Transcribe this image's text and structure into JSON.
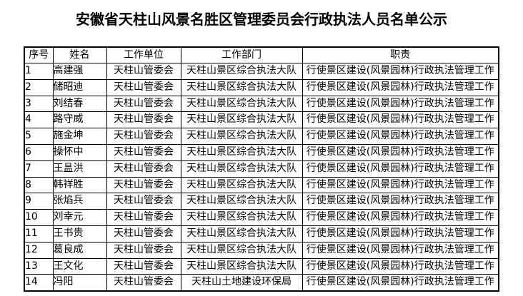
{
  "title": "安徽省天柱山风景名胜区管理委员会行政执法人员名单公示",
  "table": {
    "headers": [
      "序号",
      "姓名",
      "工作单位",
      "工作部门",
      "职责"
    ],
    "rows": [
      [
        "1",
        "高建强",
        "天柱山管委会",
        "天柱山景区综合执法大队",
        "行使景区建设(风景园林)行政执法管理工作"
      ],
      [
        "2",
        "储昭迪",
        "天柱山管委会",
        "天柱山景区综合执法大队",
        "行使景区建设(风景园林)行政执法管理工作"
      ],
      [
        "3",
        "刘结春",
        "天柱山管委会",
        "天柱山景区综合执法大队",
        "行使景区建设(风景园林)行政执法管理工作"
      ],
      [
        "4",
        "路守威",
        "天柱山管委会",
        "天柱山景区综合执法大队",
        "行使景区建设(风景园林)行政执法管理工作"
      ],
      [
        "5",
        "施金坤",
        "天柱山管委会",
        "天柱山景区综合执法大队",
        "行使景区建设(风景园林)行政执法管理工作"
      ],
      [
        "6",
        "操怀中",
        "天柱山管委会",
        "天柱山景区综合执法大队",
        "行使景区建设(风景园林)行政执法管理工作"
      ],
      [
        "7",
        "王昷洪",
        "天柱山管委会",
        "天柱山景区综合执法大队",
        "行使景区建设(风景园林)行政执法管理工作"
      ],
      [
        "8",
        "韩祥胜",
        "天柱山管委会",
        "天柱山景区综合执法大队",
        "行使景区建设(风景园林)行政执法管理工作"
      ],
      [
        "9",
        "张焰兵",
        "天柱山管委会",
        "天柱山景区综合执法大队",
        "行使景区建设(风景园林)行政执法管理工作"
      ],
      [
        "10",
        "刘幸元",
        "天柱山管委会",
        "天柱山景区综合执法大队",
        "行使景区建设(风景园林)行政执法管理工作"
      ],
      [
        "11",
        "王书贵",
        "天柱山管委会",
        "天柱山景区综合执法大队",
        "行使景区建设(风景园林)行政执法管理工作"
      ],
      [
        "12",
        "葛良成",
        "天柱山管委会",
        "天柱山景区综合执法大队",
        "行使景区建设(风景园林)行政执法管理工作"
      ],
      [
        "13",
        "王文化",
        "天柱山管委会",
        "天柱山景区综合执法大队",
        "行使景区建设(风景园林)行政执法管理工作"
      ],
      [
        "14",
        "冯阳",
        "天柱山管委会",
        "天柱山土地建设环保局",
        "行使景区建设(风景园林)行政执法管理工作"
      ]
    ]
  }
}
